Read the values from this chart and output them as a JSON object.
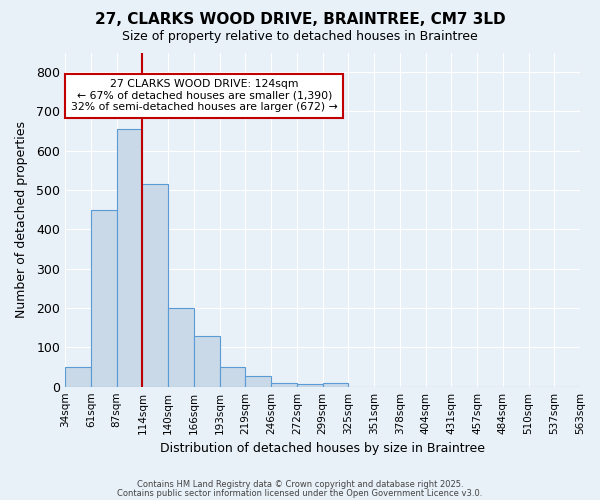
{
  "title_line1": "27, CLARKS WOOD DRIVE, BRAINTREE, CM7 3LD",
  "title_line2": "Size of property relative to detached houses in Braintree",
  "xlabel": "Distribution of detached houses by size in Braintree",
  "ylabel": "Number of detached properties",
  "bar_values": [
    50,
    450,
    655,
    515,
    200,
    130,
    50,
    28,
    10,
    8,
    10,
    0,
    0,
    0,
    0,
    0,
    0,
    0,
    0,
    0
  ],
  "bar_labels": [
    "34sqm",
    "61sqm",
    "87sqm",
    "114sqm",
    "140sqm",
    "166sqm",
    "193sqm",
    "219sqm",
    "246sqm",
    "272sqm",
    "299sqm",
    "325sqm",
    "351sqm",
    "378sqm",
    "404sqm",
    "431sqm",
    "457sqm",
    "484sqm",
    "510sqm",
    "537sqm",
    "563sqm"
  ],
  "bar_color": "#c9d9e8",
  "bar_edge_color": "#5b9bd5",
  "ylim": [
    0,
    850
  ],
  "yticks": [
    0,
    100,
    200,
    300,
    400,
    500,
    600,
    700,
    800
  ],
  "vline_color": "#c00000",
  "vline_x": 2.5,
  "annotation_title": "27 CLARKS WOOD DRIVE: 124sqm",
  "annotation_line2": "← 67% of detached houses are smaller (1,390)",
  "annotation_line3": "32% of semi-detached houses are larger (672) →",
  "annotation_box_color": "#ffffff",
  "annotation_box_edge": "#c00000",
  "footer_line1": "Contains HM Land Registry data © Crown copyright and database right 2025.",
  "footer_line2": "Contains public sector information licensed under the Open Government Licence v3.0.",
  "background_color": "#e8f0f8",
  "plot_background": "#e8f0f8"
}
